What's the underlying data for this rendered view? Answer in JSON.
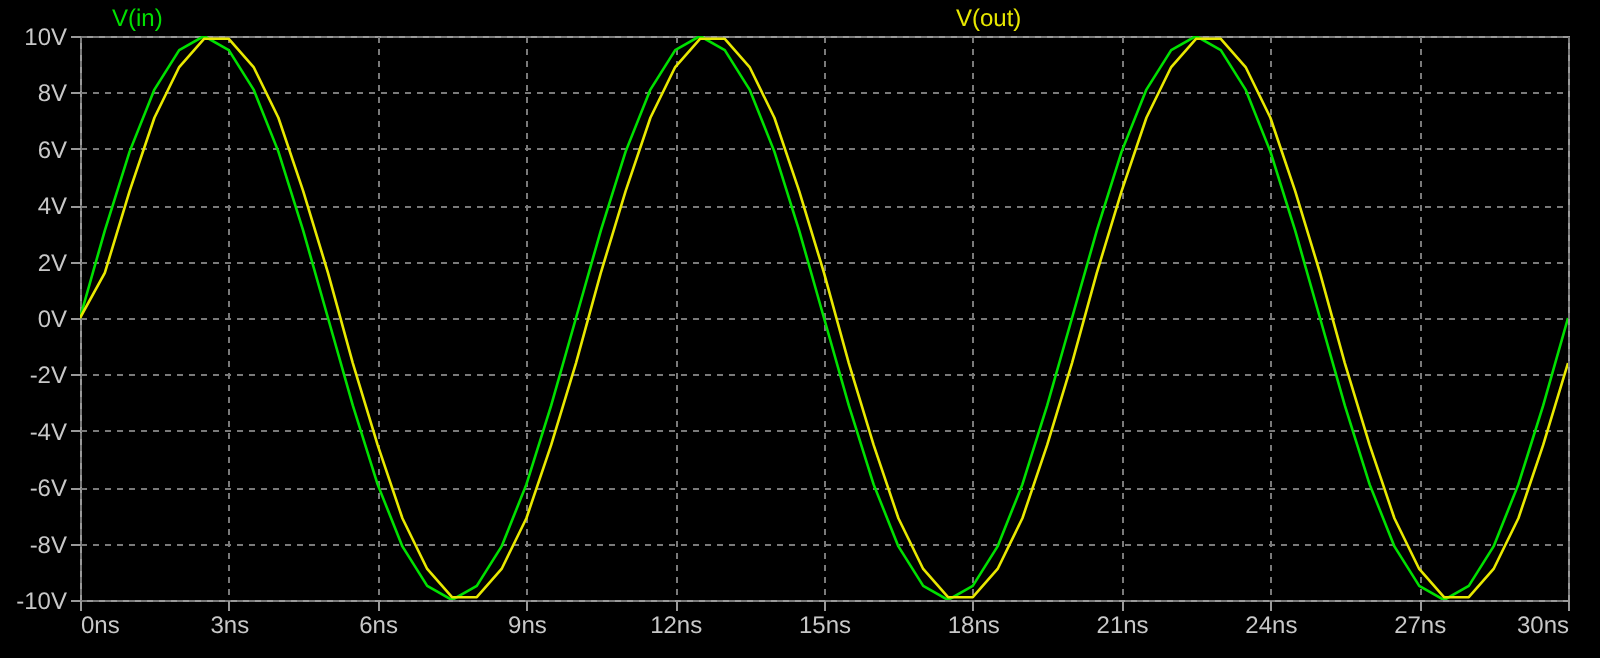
{
  "chart_data": {
    "type": "line",
    "x": [
      0,
      0.5,
      1,
      1.5,
      2,
      2.5,
      3,
      3.5,
      4,
      4.5,
      5,
      5.5,
      6,
      6.5,
      7,
      7.5,
      8,
      8.5,
      9,
      9.5,
      10,
      10.5,
      11,
      11.5,
      12,
      12.5,
      13,
      13.5,
      14,
      14.5,
      15,
      15.5,
      16,
      16.5,
      17,
      17.5,
      18,
      18.5,
      19,
      19.5,
      20,
      20.5,
      21,
      21.5,
      22,
      22.5,
      23,
      23.5,
      24,
      24.5,
      25,
      25.5,
      26,
      26.5,
      27,
      27.5,
      28,
      28.5,
      29,
      29.5,
      30
    ],
    "series": [
      {
        "name": "V(in)",
        "color": "#00e000",
        "values": [
          0,
          3.1,
          5.9,
          8.1,
          9.5,
          10,
          9.5,
          8.1,
          5.9,
          3.1,
          0,
          -3.1,
          -5.9,
          -8.1,
          -9.5,
          -10,
          -9.5,
          -8.1,
          -5.9,
          -3.1,
          0,
          3.1,
          5.9,
          8.1,
          9.5,
          10,
          9.5,
          8.1,
          5.9,
          3.1,
          0,
          -3.1,
          -5.9,
          -8.1,
          -9.5,
          -10,
          -9.5,
          -8.1,
          -5.9,
          -3.1,
          0,
          3.1,
          5.9,
          8.1,
          9.5,
          10,
          9.5,
          8.1,
          5.9,
          3.1,
          0,
          -3.1,
          -5.9,
          -8.1,
          -9.5,
          -10,
          -9.5,
          -8.1,
          -5.9,
          -3.1,
          0
        ]
      },
      {
        "name": "V(out)",
        "color": "#e8e800",
        "values": [
          0,
          1.6,
          4.5,
          7.1,
          8.9,
          9.9,
          9.9,
          8.9,
          7.1,
          4.5,
          1.6,
          -1.6,
          -4.5,
          -7.1,
          -8.9,
          -9.9,
          -9.9,
          -8.9,
          -7.1,
          -4.5,
          -1.6,
          1.6,
          4.5,
          7.1,
          8.9,
          9.9,
          9.9,
          8.9,
          7.1,
          4.5,
          1.6,
          -1.6,
          -4.5,
          -7.1,
          -8.9,
          -9.9,
          -9.9,
          -8.9,
          -7.1,
          -4.5,
          -1.6,
          1.6,
          4.5,
          7.1,
          8.9,
          9.9,
          9.9,
          8.9,
          7.1,
          4.5,
          1.6,
          -1.6,
          -4.5,
          -7.1,
          -8.9,
          -9.9,
          -9.9,
          -8.9,
          -7.1,
          -4.5,
          -1.6
        ]
      }
    ],
    "xlim": [
      0,
      30
    ],
    "xticks": [
      {
        "value": 0,
        "label": "0ns"
      },
      {
        "value": 3,
        "label": "3ns"
      },
      {
        "value": 6,
        "label": "6ns"
      },
      {
        "value": 9,
        "label": "9ns"
      },
      {
        "value": 12,
        "label": "12ns"
      },
      {
        "value": 15,
        "label": "15ns"
      },
      {
        "value": 18,
        "label": "18ns"
      },
      {
        "value": 21,
        "label": "21ns"
      },
      {
        "value": 24,
        "label": "24ns"
      },
      {
        "value": 27,
        "label": "27ns"
      },
      {
        "value": 30,
        "label": "30ns"
      }
    ],
    "ylim": [
      -10,
      10
    ],
    "yticks": [
      {
        "value": -10,
        "label": "-10V"
      },
      {
        "value": -8,
        "label": "-8V"
      },
      {
        "value": -6,
        "label": "-6V"
      },
      {
        "value": -4,
        "label": "-4V"
      },
      {
        "value": -2,
        "label": "-2V"
      },
      {
        "value": 0,
        "label": "0V"
      },
      {
        "value": 2,
        "label": "2V"
      },
      {
        "value": 4,
        "label": "4V"
      },
      {
        "value": 6,
        "label": "6V"
      },
      {
        "value": 8,
        "label": "8V"
      },
      {
        "value": 10,
        "label": "10V"
      }
    ],
    "grid": true,
    "legend": "top",
    "marker": "none",
    "line_style": "solid"
  }
}
